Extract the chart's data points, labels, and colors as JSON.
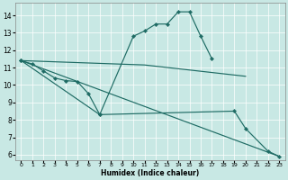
{
  "xlabel": "Humidex (Indice chaleur)",
  "xlim": [
    -0.5,
    23.5
  ],
  "ylim": [
    5.7,
    14.7
  ],
  "yticks": [
    6,
    7,
    8,
    9,
    10,
    11,
    12,
    13,
    14
  ],
  "xticks": [
    0,
    1,
    2,
    3,
    4,
    5,
    6,
    7,
    8,
    9,
    10,
    11,
    12,
    13,
    14,
    15,
    16,
    17,
    18,
    19,
    20,
    21,
    22,
    23
  ],
  "bg_color": "#c8e8e4",
  "line_color": "#1e6b64",
  "line1_x": [
    0,
    1,
    2,
    3,
    4,
    5,
    6,
    7,
    10,
    11,
    12,
    13,
    14,
    15,
    16,
    17
  ],
  "line1_y": [
    11.4,
    11.2,
    10.8,
    10.4,
    10.25,
    10.2,
    9.5,
    8.3,
    12.8,
    13.1,
    13.5,
    13.5,
    14.2,
    14.2,
    12.8,
    11.5
  ],
  "line2_x": [
    0,
    11,
    20
  ],
  "line2_y": [
    11.4,
    11.15,
    10.5
  ],
  "line3_x": [
    0,
    7,
    19,
    20,
    22,
    23
  ],
  "line3_y": [
    11.4,
    8.3,
    8.5,
    7.5,
    6.2,
    5.9
  ],
  "line4_x": [
    0,
    23
  ],
  "line4_y": [
    11.4,
    5.9
  ]
}
